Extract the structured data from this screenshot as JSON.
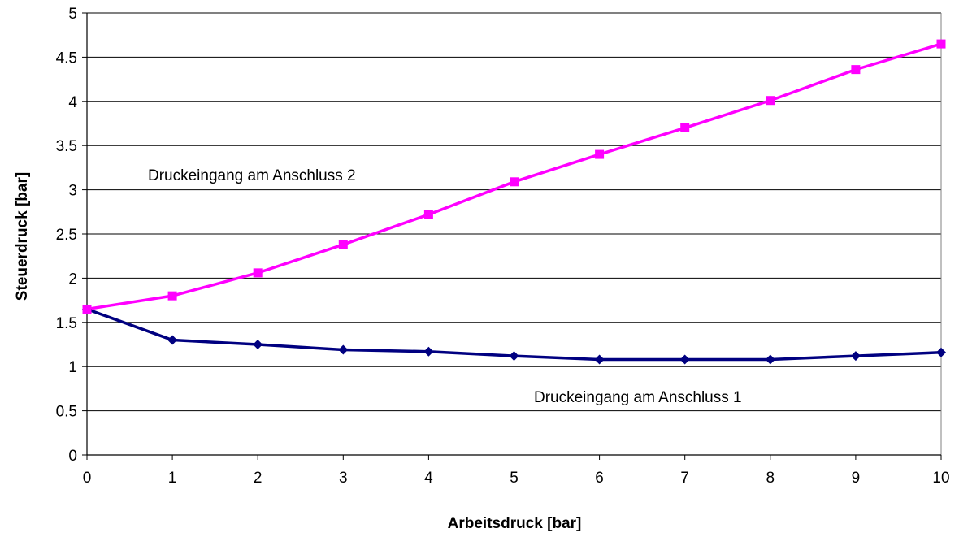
{
  "chart_data": {
    "type": "line",
    "title": "",
    "xlabel": "Arbeitsdruck [bar]",
    "ylabel": "Steuerdruck [bar]",
    "xlim": [
      0,
      10
    ],
    "ylim": [
      0,
      5
    ],
    "x_ticks": [
      0,
      1,
      2,
      3,
      4,
      5,
      6,
      7,
      8,
      9,
      10
    ],
    "y_ticks": [
      0,
      0.5,
      1,
      1.5,
      2,
      2.5,
      3,
      3.5,
      4,
      4.5,
      5
    ],
    "grid": "horizontal",
    "legend": "none",
    "x": [
      0,
      1,
      2,
      3,
      4,
      5,
      6,
      7,
      8,
      9,
      10
    ],
    "series": [
      {
        "values": [
          1.65,
          1.3,
          1.25,
          1.19,
          1.17,
          1.12,
          1.08,
          1.08,
          1.08,
          1.12,
          1.16
        ],
        "color": "#000080",
        "marker": "diamond"
      },
      {
        "values": [
          1.65,
          1.8,
          2.06,
          2.38,
          2.72,
          3.09,
          3.4,
          3.7,
          4.01,
          4.36,
          4.65
        ],
        "color": "#ff00ff",
        "marker": "square"
      }
    ],
    "annotations": [
      {
        "text": "Druckeingang am Anschluss 2",
        "series": 1
      },
      {
        "text": "Druckeingang am Anschluss 1",
        "series": 0
      }
    ]
  }
}
